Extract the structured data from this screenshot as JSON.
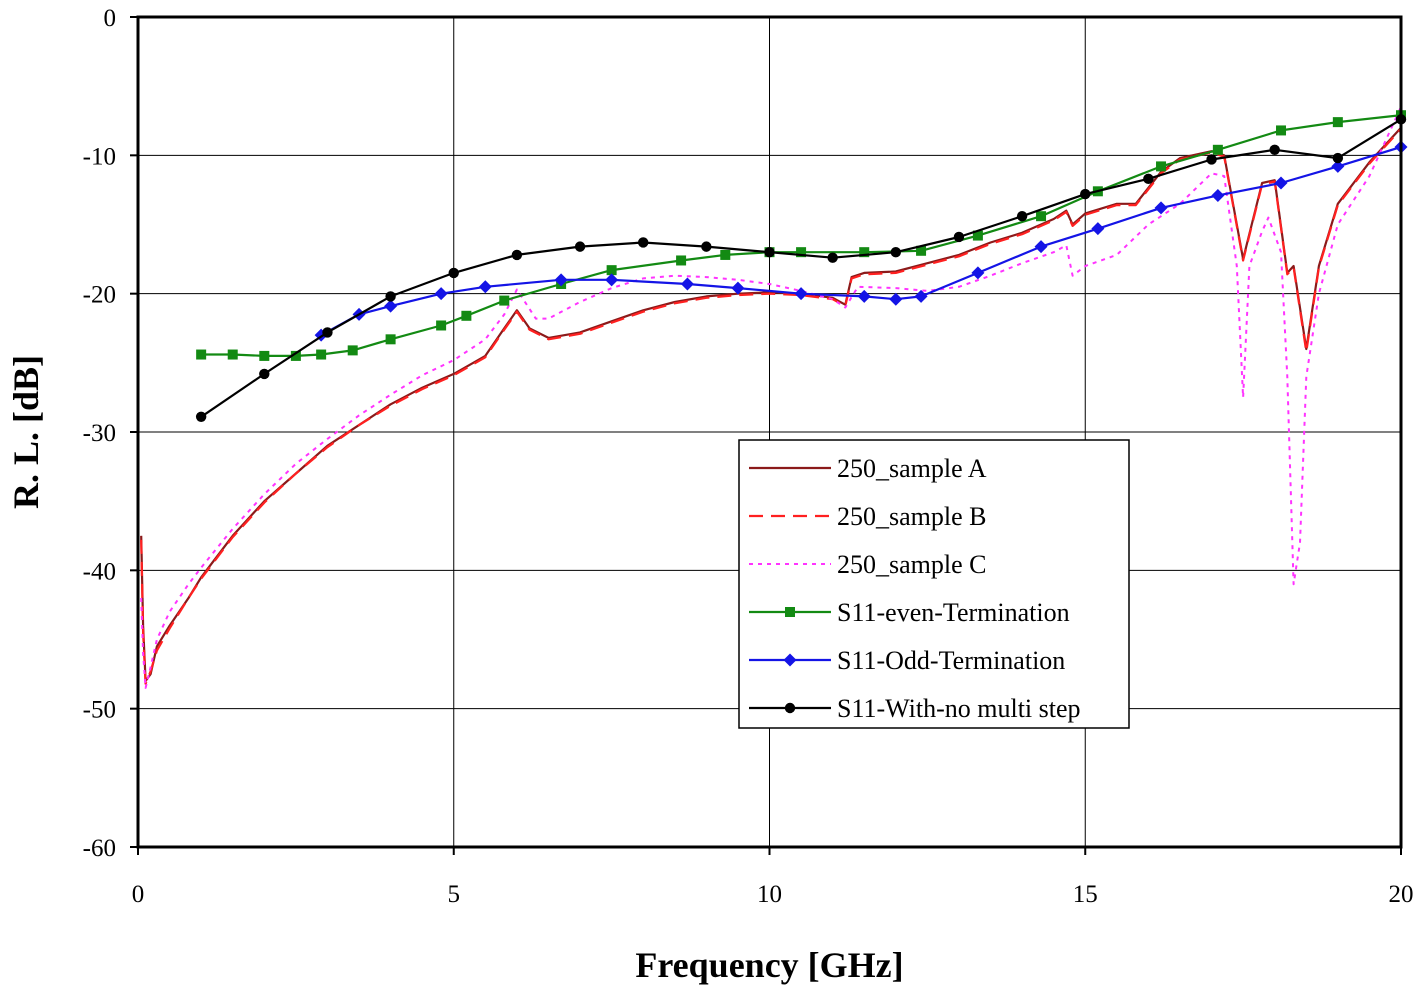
{
  "chart_data": {
    "type": "line",
    "title": "",
    "xlabel": "Frequency [GHz]",
    "ylabel": "R. L. [dB]",
    "xlim": [
      0,
      20
    ],
    "ylim": [
      -60,
      0
    ],
    "xticks": [
      0,
      5,
      10,
      15,
      20
    ],
    "yticks": [
      0,
      -10,
      -20,
      -30,
      -40,
      -50,
      -60
    ],
    "grid": true,
    "legend_position": "center-right",
    "series": [
      {
        "name": "250_sample A",
        "color": "#8b1a1a",
        "dash": "solid",
        "marker": "none",
        "points": [
          [
            0.05,
            -37.5
          ],
          [
            0.08,
            -44
          ],
          [
            0.12,
            -48
          ],
          [
            0.2,
            -47.5
          ],
          [
            0.3,
            -45.5
          ],
          [
            0.5,
            -44
          ],
          [
            0.8,
            -42
          ],
          [
            1,
            -40.5
          ],
          [
            1.5,
            -37.5
          ],
          [
            2,
            -35
          ],
          [
            2.5,
            -33
          ],
          [
            3,
            -31
          ],
          [
            3.5,
            -29.5
          ],
          [
            4,
            -28
          ],
          [
            4.5,
            -26.8
          ],
          [
            5,
            -25.8
          ],
          [
            5.5,
            -24.5
          ],
          [
            5.8,
            -22.5
          ],
          [
            6,
            -21.2
          ],
          [
            6.2,
            -22.5
          ],
          [
            6.5,
            -23.2
          ],
          [
            7,
            -22.8
          ],
          [
            7.5,
            -22
          ],
          [
            8,
            -21.2
          ],
          [
            8.5,
            -20.6
          ],
          [
            9,
            -20.2
          ],
          [
            9.5,
            -20
          ],
          [
            10,
            -19.9
          ],
          [
            10.5,
            -20
          ],
          [
            11,
            -20.3
          ],
          [
            11.2,
            -20.8
          ],
          [
            11.3,
            -18.8
          ],
          [
            11.5,
            -18.5
          ],
          [
            12,
            -18.4
          ],
          [
            12.5,
            -17.8
          ],
          [
            13,
            -17.2
          ],
          [
            13.5,
            -16.3
          ],
          [
            14,
            -15.6
          ],
          [
            14.5,
            -14.6
          ],
          [
            14.7,
            -14
          ],
          [
            14.8,
            -15
          ],
          [
            15,
            -14.2
          ],
          [
            15.5,
            -13.5
          ],
          [
            15.8,
            -13.5
          ],
          [
            16.2,
            -11.2
          ],
          [
            16.5,
            -10.2
          ],
          [
            17,
            -9.7
          ],
          [
            17.2,
            -10
          ],
          [
            17.5,
            -17.5
          ],
          [
            17.8,
            -12
          ],
          [
            18,
            -11.8
          ],
          [
            18.2,
            -18.5
          ],
          [
            18.3,
            -18
          ],
          [
            18.5,
            -24
          ],
          [
            18.7,
            -18
          ],
          [
            19,
            -13.5
          ],
          [
            19.5,
            -10.5
          ],
          [
            20,
            -8
          ]
        ]
      },
      {
        "name": "250_sample B",
        "color": "#ff2020",
        "dash": "dashed",
        "marker": "none",
        "points": [
          [
            0.05,
            -37.8
          ],
          [
            0.08,
            -44.5
          ],
          [
            0.12,
            -48.2
          ],
          [
            0.2,
            -47.3
          ],
          [
            0.3,
            -45.8
          ],
          [
            0.5,
            -44.2
          ],
          [
            0.8,
            -42
          ],
          [
            1,
            -40.6
          ],
          [
            1.5,
            -37.6
          ],
          [
            2,
            -35.1
          ],
          [
            2.5,
            -33
          ],
          [
            3,
            -31.1
          ],
          [
            3.5,
            -29.5
          ],
          [
            4,
            -28.1
          ],
          [
            4.5,
            -26.9
          ],
          [
            5,
            -25.9
          ],
          [
            5.5,
            -24.6
          ],
          [
            5.8,
            -22.6
          ],
          [
            6,
            -21.3
          ],
          [
            6.2,
            -22.6
          ],
          [
            6.5,
            -23.3
          ],
          [
            7,
            -22.9
          ],
          [
            7.5,
            -22.1
          ],
          [
            8,
            -21.3
          ],
          [
            8.5,
            -20.7
          ],
          [
            9,
            -20.3
          ],
          [
            9.5,
            -20.1
          ],
          [
            10,
            -20
          ],
          [
            10.5,
            -20.1
          ],
          [
            11,
            -20.4
          ],
          [
            11.2,
            -20.9
          ],
          [
            11.3,
            -18.9
          ],
          [
            11.5,
            -18.6
          ],
          [
            12,
            -18.5
          ],
          [
            12.5,
            -17.9
          ],
          [
            13,
            -17.3
          ],
          [
            13.5,
            -16.4
          ],
          [
            14,
            -15.7
          ],
          [
            14.5,
            -14.7
          ],
          [
            14.7,
            -14.1
          ],
          [
            14.8,
            -15.1
          ],
          [
            15,
            -14.3
          ],
          [
            15.5,
            -13.6
          ],
          [
            15.8,
            -13.6
          ],
          [
            16.2,
            -11.3
          ],
          [
            16.5,
            -10.3
          ],
          [
            17,
            -9.8
          ],
          [
            17.2,
            -10.1
          ],
          [
            17.5,
            -17.6
          ],
          [
            17.8,
            -12.1
          ],
          [
            18,
            -11.9
          ],
          [
            18.2,
            -18.6
          ],
          [
            18.3,
            -18.1
          ],
          [
            18.5,
            -24.2
          ],
          [
            18.7,
            -18.1
          ],
          [
            19,
            -13.6
          ],
          [
            19.5,
            -10.6
          ],
          [
            20,
            -8.1
          ]
        ]
      },
      {
        "name": "250_sample C",
        "color": "#ff33ff",
        "dash": "dotted",
        "marker": "none",
        "points": [
          [
            0.05,
            -42
          ],
          [
            0.08,
            -46
          ],
          [
            0.12,
            -48.5
          ],
          [
            0.2,
            -47
          ],
          [
            0.3,
            -45
          ],
          [
            0.5,
            -43
          ],
          [
            0.8,
            -41
          ],
          [
            1,
            -39.8
          ],
          [
            1.5,
            -37
          ],
          [
            2,
            -34.5
          ],
          [
            2.5,
            -32.3
          ],
          [
            3,
            -30.5
          ],
          [
            3.5,
            -28.8
          ],
          [
            4,
            -27.3
          ],
          [
            4.5,
            -25.9
          ],
          [
            5,
            -24.8
          ],
          [
            5.5,
            -23.3
          ],
          [
            5.8,
            -21.5
          ],
          [
            6,
            -19.7
          ],
          [
            6.3,
            -21.8
          ],
          [
            6.5,
            -21.8
          ],
          [
            7,
            -20.6
          ],
          [
            7.5,
            -19.6
          ],
          [
            8,
            -18.9
          ],
          [
            8.5,
            -18.7
          ],
          [
            9,
            -18.8
          ],
          [
            9.5,
            -19
          ],
          [
            10,
            -19.3
          ],
          [
            10.5,
            -19.8
          ],
          [
            11,
            -20.4
          ],
          [
            11.2,
            -21
          ],
          [
            11.4,
            -19.5
          ],
          [
            12,
            -19.6
          ],
          [
            12.5,
            -19.8
          ],
          [
            13,
            -19.5
          ],
          [
            13.5,
            -18.7
          ],
          [
            14,
            -17.8
          ],
          [
            14.5,
            -17
          ],
          [
            14.7,
            -16.5
          ],
          [
            14.8,
            -18.7
          ],
          [
            15,
            -18
          ],
          [
            15.5,
            -17.2
          ],
          [
            16,
            -15
          ],
          [
            16.5,
            -13.5
          ],
          [
            17,
            -11.3
          ],
          [
            17.2,
            -11.5
          ],
          [
            17.4,
            -18
          ],
          [
            17.5,
            -27.5
          ],
          [
            17.6,
            -18
          ],
          [
            17.8,
            -15.5
          ],
          [
            17.9,
            -14.5
          ],
          [
            18.1,
            -17
          ],
          [
            18.2,
            -26
          ],
          [
            18.3,
            -41
          ],
          [
            18.4,
            -38
          ],
          [
            18.5,
            -26
          ],
          [
            18.7,
            -20
          ],
          [
            19,
            -15
          ],
          [
            19.5,
            -11.5
          ],
          [
            20,
            -6.5
          ]
        ]
      },
      {
        "name": "S11-even-Termination",
        "color": "#138a13",
        "dash": "solid",
        "marker": "square",
        "points": [
          [
            1,
            -24.4
          ],
          [
            1.5,
            -24.4
          ],
          [
            2,
            -24.5
          ],
          [
            2.5,
            -24.5
          ],
          [
            2.9,
            -24.4
          ],
          [
            3.4,
            -24.1
          ],
          [
            4,
            -23.3
          ],
          [
            4.8,
            -22.3
          ],
          [
            5.2,
            -21.6
          ],
          [
            5.8,
            -20.5
          ],
          [
            6.7,
            -19.3
          ],
          [
            7.5,
            -18.3
          ],
          [
            8.6,
            -17.6
          ],
          [
            9.3,
            -17.2
          ],
          [
            10,
            -17
          ],
          [
            10.5,
            -17
          ],
          [
            11.5,
            -17
          ],
          [
            12.4,
            -16.9
          ],
          [
            13.3,
            -15.8
          ],
          [
            14.3,
            -14.4
          ],
          [
            15.2,
            -12.6
          ],
          [
            16.2,
            -10.8
          ],
          [
            17.1,
            -9.6
          ],
          [
            18.1,
            -8.2
          ],
          [
            19,
            -7.6
          ],
          [
            20,
            -7.1
          ]
        ]
      },
      {
        "name": "S11-Odd-Termination",
        "color": "#1414e6",
        "dash": "solid",
        "marker": "diamond",
        "points": [
          [
            2.9,
            -23
          ],
          [
            3.5,
            -21.5
          ],
          [
            4,
            -20.9
          ],
          [
            4.8,
            -20
          ],
          [
            5.5,
            -19.5
          ],
          [
            6.7,
            -19
          ],
          [
            7.5,
            -19
          ],
          [
            8.7,
            -19.3
          ],
          [
            9.5,
            -19.6
          ],
          [
            10.5,
            -20
          ],
          [
            11.5,
            -20.2
          ],
          [
            12,
            -20.4
          ],
          [
            12.4,
            -20.2
          ],
          [
            13.3,
            -18.5
          ],
          [
            14.3,
            -16.6
          ],
          [
            15.2,
            -15.3
          ],
          [
            16.2,
            -13.8
          ],
          [
            17.1,
            -12.9
          ],
          [
            18.1,
            -12
          ],
          [
            19,
            -10.8
          ],
          [
            20,
            -9.4
          ]
        ]
      },
      {
        "name": "S11-With-no multi step",
        "color": "#000000",
        "dash": "solid",
        "marker": "circle",
        "points": [
          [
            1,
            -28.9
          ],
          [
            2,
            -25.8
          ],
          [
            3,
            -22.8
          ],
          [
            4,
            -20.2
          ],
          [
            5,
            -18.5
          ],
          [
            6,
            -17.2
          ],
          [
            7,
            -16.6
          ],
          [
            8,
            -16.3
          ],
          [
            9,
            -16.6
          ],
          [
            10,
            -17
          ],
          [
            11,
            -17.4
          ],
          [
            12,
            -17
          ],
          [
            13,
            -15.9
          ],
          [
            14,
            -14.4
          ],
          [
            15,
            -12.8
          ],
          [
            16,
            -11.7
          ],
          [
            17,
            -10.3
          ],
          [
            18,
            -9.6
          ],
          [
            19,
            -10.2
          ],
          [
            20,
            -7.4
          ]
        ]
      }
    ]
  }
}
